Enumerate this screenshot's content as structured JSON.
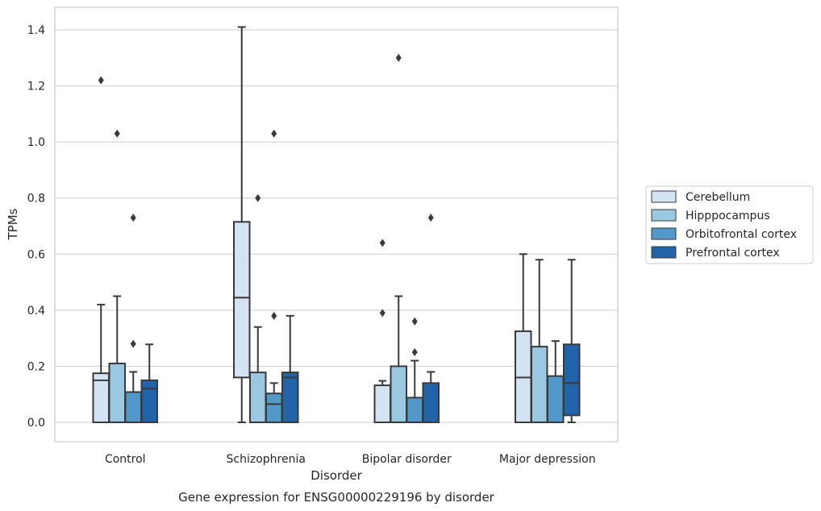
{
  "chart_data": {
    "type": "box",
    "caption": "Gene expression for ENSG00000229196 by disorder",
    "xlabel": "Disorder",
    "ylabel": "TPMs",
    "ylim": [
      -0.07,
      1.48
    ],
    "yticks": [
      0.0,
      0.2,
      0.4,
      0.6,
      0.8,
      1.0,
      1.2,
      1.4
    ],
    "ytick_labels": [
      "0.0",
      "0.2",
      "0.4",
      "0.6",
      "0.8",
      "1.0",
      "1.2",
      "1.4"
    ],
    "grid": "horizontal",
    "legend_position": "right",
    "categories": [
      "Control",
      "Schizophrenia",
      "Bipolar disorder",
      "Major depression"
    ],
    "series": [
      {
        "name": "Cerebellum",
        "color": "#d3e3f3",
        "boxes": [
          {
            "low": 0.0,
            "q1": 0.0,
            "median": 0.15,
            "q3": 0.175,
            "high": 0.42,
            "outliers": [
              1.22
            ]
          },
          {
            "low": 0.0,
            "q1": 0.16,
            "median": 0.445,
            "q3": 0.715,
            "high": 1.41,
            "outliers": []
          },
          {
            "low": 0.0,
            "q1": 0.0,
            "median": 0.0,
            "q3": 0.132,
            "high": 0.148,
            "outliers": [
              0.64,
              0.39
            ]
          },
          {
            "low": 0.0,
            "q1": 0.0,
            "median": 0.16,
            "q3": 0.325,
            "high": 0.6,
            "outliers": []
          }
        ]
      },
      {
        "name": "Hipppocampus",
        "color": "#9ac8e0",
        "boxes": [
          {
            "low": 0.0,
            "q1": 0.0,
            "median": 0.0,
            "q3": 0.21,
            "high": 0.45,
            "outliers": [
              1.03
            ]
          },
          {
            "low": 0.0,
            "q1": 0.0,
            "median": 0.0,
            "q3": 0.178,
            "high": 0.34,
            "outliers": [
              0.8
            ]
          },
          {
            "low": 0.0,
            "q1": 0.0,
            "median": 0.0,
            "q3": 0.2,
            "high": 0.45,
            "outliers": [
              1.3
            ]
          },
          {
            "low": 0.0,
            "q1": 0.0,
            "median": 0.0,
            "q3": 0.27,
            "high": 0.58,
            "outliers": []
          }
        ]
      },
      {
        "name": "Orbitofrontal cortex",
        "color": "#5298c8",
        "boxes": [
          {
            "low": 0.0,
            "q1": 0.0,
            "median": 0.0,
            "q3": 0.108,
            "high": 0.18,
            "outliers": [
              0.73,
              0.28
            ]
          },
          {
            "low": 0.0,
            "q1": 0.0,
            "median": 0.065,
            "q3": 0.103,
            "high": 0.14,
            "outliers": [
              1.03,
              0.38
            ]
          },
          {
            "low": 0.0,
            "q1": 0.0,
            "median": 0.0,
            "q3": 0.088,
            "high": 0.22,
            "outliers": [
              0.36,
              0.25
            ]
          },
          {
            "low": 0.0,
            "q1": 0.0,
            "median": 0.0,
            "q3": 0.165,
            "high": 0.29,
            "outliers": []
          }
        ]
      },
      {
        "name": "Prefrontal cortex",
        "color": "#2163a8",
        "boxes": [
          {
            "low": 0.0,
            "q1": 0.0,
            "median": 0.12,
            "q3": 0.15,
            "high": 0.278,
            "outliers": []
          },
          {
            "low": 0.0,
            "q1": 0.0,
            "median": 0.16,
            "q3": 0.178,
            "high": 0.38,
            "outliers": []
          },
          {
            "low": 0.0,
            "q1": 0.0,
            "median": 0.0,
            "q3": 0.14,
            "high": 0.18,
            "outliers": [
              0.73
            ]
          },
          {
            "low": 0.0,
            "q1": 0.025,
            "median": 0.14,
            "q3": 0.278,
            "high": 0.58,
            "outliers": []
          }
        ]
      }
    ]
  }
}
